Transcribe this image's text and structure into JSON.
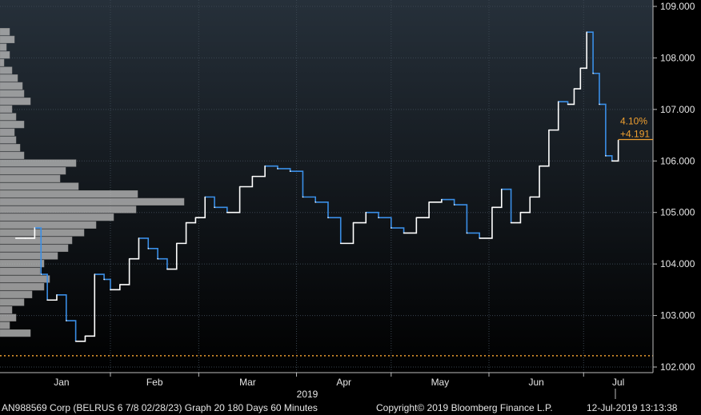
{
  "chart_data": {
    "type": "line",
    "title": "",
    "xlabel": "2019",
    "ylabel": "",
    "x_tick_labels": [
      "Jan",
      "Feb",
      "Mar",
      "Apr",
      "May",
      "Jun",
      "Jul"
    ],
    "y_tick_labels": [
      "102.000",
      "103.000",
      "104.000",
      "105.000",
      "106.000",
      "107.000",
      "108.000",
      "109.000"
    ],
    "ylim": [
      102.0,
      109.0
    ],
    "y_axis_side": "right",
    "grid": true,
    "series": [
      {
        "x": [
          "2019-01-02",
          "2019-01-05",
          "2019-01-08",
          "2019-01-10",
          "2019-01-12",
          "2019-01-15",
          "2019-01-18",
          "2019-01-21",
          "2019-01-24",
          "2019-01-27",
          "2019-01-30",
          "2019-02-01",
          "2019-02-04",
          "2019-02-07",
          "2019-02-10",
          "2019-02-13",
          "2019-02-16",
          "2019-02-19",
          "2019-02-22",
          "2019-02-25",
          "2019-02-28",
          "2019-03-03",
          "2019-03-06",
          "2019-03-10",
          "2019-03-14",
          "2019-03-18",
          "2019-03-22",
          "2019-03-26",
          "2019-03-30",
          "2019-04-03",
          "2019-04-07",
          "2019-04-11",
          "2019-04-15",
          "2019-04-19",
          "2019-04-23",
          "2019-04-27",
          "2019-05-01",
          "2019-05-05",
          "2019-05-09",
          "2019-05-13",
          "2019-05-17",
          "2019-05-21",
          "2019-05-25",
          "2019-05-29",
          "2019-06-02",
          "2019-06-05",
          "2019-06-08",
          "2019-06-11",
          "2019-06-14",
          "2019-06-17",
          "2019-06-20",
          "2019-06-23",
          "2019-06-26",
          "2019-06-28",
          "2019-06-30",
          "2019-07-02",
          "2019-07-04",
          "2019-07-06",
          "2019-07-08",
          "2019-07-10",
          "2019-07-12"
        ],
        "values": [
          104.5,
          104.5,
          104.7,
          103.8,
          103.3,
          103.4,
          102.9,
          102.5,
          102.6,
          103.8,
          103.7,
          103.5,
          103.6,
          104.1,
          104.5,
          104.3,
          104.1,
          103.9,
          104.4,
          104.8,
          104.9,
          105.3,
          105.1,
          105.0,
          105.5,
          105.7,
          105.9,
          105.85,
          105.8,
          105.3,
          105.2,
          104.9,
          104.4,
          104.8,
          105.0,
          104.9,
          104.7,
          104.6,
          104.9,
          105.2,
          105.25,
          105.15,
          104.6,
          104.5,
          105.1,
          105.45,
          104.8,
          105.0,
          105.3,
          105.9,
          106.6,
          107.15,
          107.1,
          107.4,
          107.8,
          108.5,
          107.7,
          107.1,
          106.1,
          106.0,
          106.4
        ]
      }
    ],
    "last_value_label": "4.10%",
    "change_label": "+4.191",
    "last_value": 106.4,
    "reference_level": 102.22,
    "volume_profile": {
      "price_bins": [
        108.5,
        108.35,
        108.2,
        108.05,
        107.9,
        107.75,
        107.6,
        107.45,
        107.3,
        107.15,
        107.0,
        106.85,
        106.7,
        106.55,
        106.4,
        106.25,
        106.1,
        105.95,
        105.8,
        105.65,
        105.5,
        105.35,
        105.2,
        105.05,
        104.9,
        104.75,
        104.6,
        104.45,
        104.3,
        104.15,
        104.0,
        103.85,
        103.7,
        103.55,
        103.4,
        103.25,
        103.1,
        102.95,
        102.8,
        102.65
      ],
      "weights": [
        0.12,
        0.18,
        0.08,
        0.12,
        0.05,
        0.15,
        0.22,
        0.28,
        0.3,
        0.38,
        0.15,
        0.2,
        0.3,
        0.18,
        0.2,
        0.25,
        0.3,
        0.95,
        0.82,
        0.75,
        0.98,
        1.72,
        2.3,
        1.7,
        1.42,
        1.2,
        1.05,
        0.9,
        0.85,
        0.72,
        0.55,
        0.5,
        0.62,
        0.55,
        0.4,
        0.3,
        0.15,
        0.2,
        0.12,
        0.38
      ]
    }
  },
  "footer": {
    "security": "AN988569 Corp (BELRUS 6 7/8 02/28/23) Graph 20 180 Days 60 Minutes",
    "copyright": "Copyright© 2019 Bloomberg Finance L.P.",
    "timestamp": "12-Jul-2019 13:13:38"
  },
  "colors": {
    "background_top": "#26303a",
    "background_bottom": "#000000",
    "line_primary": "#ffffff",
    "line_secondary": "#3a8ee6",
    "annotation": "#f0a030",
    "grid": "#3a4550",
    "profile": "#bdbdbd"
  }
}
